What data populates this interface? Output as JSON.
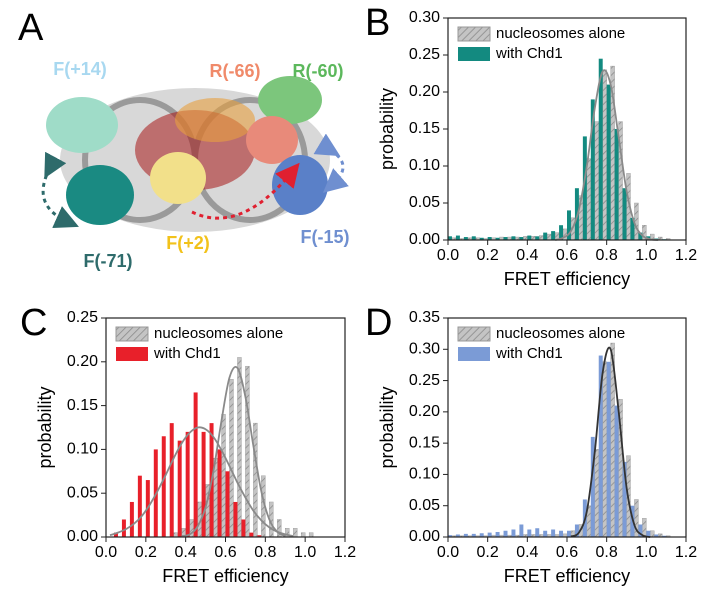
{
  "panel_a": {
    "letter": "A",
    "labels": [
      "F(+14)",
      "R(-66)",
      "R(-60)",
      "F(-71)",
      "F(+2)",
      "F(-15)"
    ]
  },
  "chart_data": [
    {
      "type": "histogram",
      "panel": "B",
      "xlabel": "FRET efficiency",
      "ylabel": "probability",
      "bins": [
        0,
        0.04,
        0.08,
        0.12,
        0.16,
        0.2,
        0.24,
        0.28,
        0.32,
        0.36,
        0.4,
        0.44,
        0.48,
        0.52,
        0.56,
        0.6,
        0.64,
        0.68,
        0.72,
        0.76,
        0.8,
        0.84,
        0.88,
        0.92,
        0.96,
        1,
        1.04,
        1.08,
        1.12,
        1.16,
        1.2
      ],
      "series": [
        {
          "name": "nucleosomes alone",
          "color": "#bdbdbd",
          "pattern": "hatched",
          "values": [
            0.003,
            0.002,
            0.003,
            0.003,
            0.002,
            0.003,
            0.004,
            0.004,
            0.004,
            0.005,
            0.005,
            0.006,
            0.008,
            0.01,
            0.015,
            0.03,
            0.06,
            0.11,
            0.16,
            0.23,
            0.235,
            0.16,
            0.09,
            0.05,
            0.02,
            0.008,
            0.004,
            0.002,
            0,
            0
          ]
        },
        {
          "name": "with Chd1",
          "color": "#138a80",
          "values": [
            0.005,
            0.006,
            0.004,
            0.005,
            0.003,
            0.004,
            0.003,
            0.004,
            0.005,
            0.004,
            0.006,
            0.005,
            0.01,
            0.012,
            0.02,
            0.04,
            0.07,
            0.14,
            0.19,
            0.245,
            0.21,
            0.15,
            0.07,
            0.03,
            0.01,
            0.005,
            0.002,
            0.001,
            0,
            0
          ]
        }
      ],
      "fits": [
        {
          "color": "#8a8a8a",
          "x": [
            0.54,
            0.58,
            0.62,
            0.66,
            0.7,
            0.74,
            0.78,
            0.82,
            0.86,
            0.9,
            0.94,
            0.98,
            1.02,
            1.06
          ],
          "values": [
            0,
            0.003,
            0.012,
            0.041,
            0.1,
            0.178,
            0.228,
            0.21,
            0.14,
            0.067,
            0.023,
            0.006,
            0.001,
            0
          ]
        }
      ],
      "xlim": [
        0,
        1.2
      ],
      "ylim": [
        0,
        0.3
      ],
      "xticks": [
        {
          "value": 0,
          "label": "0.0"
        },
        0.2,
        0.4,
        0.6,
        0.8,
        {
          "value": 1,
          "label": "1.0"
        },
        1.2
      ],
      "yticks": [
        {
          "value": 0,
          "label": "0.00"
        },
        0.05,
        {
          "value": 0.1,
          "label": "0.10"
        },
        0.15,
        {
          "value": 0.2,
          "label": "0.20"
        },
        0.25,
        {
          "value": 0.3,
          "label": "0.30"
        }
      ],
      "legend": "upper left"
    },
    {
      "type": "histogram",
      "panel": "C",
      "xlabel": "FRET efficiency",
      "ylabel": "probability",
      "bins": [
        0,
        0.04,
        0.08,
        0.12,
        0.16,
        0.2,
        0.24,
        0.28,
        0.32,
        0.36,
        0.4,
        0.44,
        0.48,
        0.52,
        0.56,
        0.6,
        0.64,
        0.68,
        0.72,
        0.76,
        0.8,
        0.84,
        0.88,
        0.92,
        0.96,
        1,
        1.04,
        1.08,
        1.12,
        1.16,
        1.2
      ],
      "series": [
        {
          "name": "nucleosomes alone",
          "color": "#bdbdbd",
          "pattern": "hatched",
          "values": [
            0,
            0,
            0,
            0,
            0,
            0,
            0,
            0,
            0.005,
            0.01,
            0.02,
            0.04,
            0.06,
            0.09,
            0.14,
            0.18,
            0.205,
            0.195,
            0.13,
            0.07,
            0.04,
            0.02,
            0.01,
            0.01,
            0.005,
            0.005,
            0,
            0,
            0,
            0
          ]
        },
        {
          "name": "with Chd1",
          "color": "#e8202a",
          "values": [
            0,
            0.005,
            0.02,
            0.04,
            0.07,
            0.065,
            0.1,
            0.115,
            0.13,
            0.11,
            0.12,
            0.165,
            0.12,
            0.13,
            0.1,
            0.075,
            0.04,
            0.02,
            0.005,
            0.002,
            0,
            0,
            0,
            0,
            0,
            0,
            0,
            0,
            0,
            0
          ]
        }
      ],
      "fits": [
        {
          "color": "#8a8a8a",
          "x": [
            0.38,
            0.42,
            0.46,
            0.5,
            0.54,
            0.58,
            0.62,
            0.66,
            0.7,
            0.74,
            0.78,
            0.82,
            0.86,
            0.9
          ],
          "values": [
            0.001,
            0.003,
            0.012,
            0.034,
            0.076,
            0.133,
            0.182,
            0.193,
            0.16,
            0.104,
            0.052,
            0.02,
            0.006,
            0.001
          ]
        },
        {
          "color": "#8a8a8a",
          "x": [
            0.02,
            0.06,
            0.1,
            0.14,
            0.18,
            0.22,
            0.26,
            0.3,
            0.34,
            0.38,
            0.42,
            0.46,
            0.5,
            0.54,
            0.58,
            0.62,
            0.66,
            0.7,
            0.74,
            0.78,
            0.82,
            0.86,
            0.9,
            0.94
          ],
          "values": [
            0.002,
            0.005,
            0.009,
            0.015,
            0.024,
            0.037,
            0.053,
            0.071,
            0.09,
            0.107,
            0.119,
            0.125,
            0.123,
            0.114,
            0.099,
            0.081,
            0.062,
            0.045,
            0.03,
            0.019,
            0.011,
            0.006,
            0.003,
            0.001
          ]
        }
      ],
      "xlim": [
        0,
        1.2
      ],
      "ylim": [
        0,
        0.25
      ],
      "xticks": [
        {
          "value": 0,
          "label": "0.0"
        },
        0.2,
        0.4,
        0.6,
        0.8,
        {
          "value": 1,
          "label": "1.0"
        },
        1.2
      ],
      "yticks": [
        {
          "value": 0,
          "label": "0.00"
        },
        0.05,
        {
          "value": 0.1,
          "label": "0.10"
        },
        0.15,
        {
          "value": 0.2,
          "label": "0.20"
        },
        0.25
      ],
      "legend": "upper left"
    },
    {
      "type": "histogram",
      "panel": "D",
      "xlabel": "FRET efficiency",
      "ylabel": "probability",
      "bins": [
        0,
        0.04,
        0.08,
        0.12,
        0.16,
        0.2,
        0.24,
        0.28,
        0.32,
        0.36,
        0.4,
        0.44,
        0.48,
        0.52,
        0.56,
        0.6,
        0.64,
        0.68,
        0.72,
        0.76,
        0.8,
        0.84,
        0.88,
        0.92,
        0.96,
        1,
        1.04,
        1.08,
        1.12,
        1.16,
        1.2
      ],
      "series": [
        {
          "name": "nucleosomes alone",
          "color": "#bdbdbd",
          "pattern": "hatched",
          "values": [
            0.002,
            0.002,
            0.002,
            0.002,
            0.002,
            0.003,
            0.003,
            0.003,
            0.003,
            0.004,
            0.004,
            0.004,
            0.004,
            0.004,
            0.005,
            0.01,
            0.02,
            0.05,
            0.14,
            0.28,
            0.31,
            0.22,
            0.13,
            0.06,
            0.03,
            0.01,
            0.005,
            0.002,
            0,
            0
          ]
        },
        {
          "name": "with Chd1",
          "color": "#7b9bd6",
          "values": [
            0.003,
            0.004,
            0.005,
            0.005,
            0.006,
            0.007,
            0.008,
            0.01,
            0.012,
            0.02,
            0.012,
            0.014,
            0.01,
            0.012,
            0.01,
            0.01,
            0.02,
            0.06,
            0.16,
            0.29,
            0.28,
            0.21,
            0.12,
            0.05,
            0.02,
            0.01,
            0.004,
            0.002,
            0,
            0
          ]
        }
      ],
      "fits": [
        {
          "color": "#333333",
          "x": [
            0.62,
            0.66,
            0.7,
            0.74,
            0.78,
            0.82,
            0.86,
            0.9,
            0.94,
            0.98,
            1.02
          ],
          "values": [
            0.001,
            0.007,
            0.041,
            0.136,
            0.263,
            0.3,
            0.202,
            0.08,
            0.019,
            0.003,
            0
          ]
        }
      ],
      "xlim": [
        0,
        1.2
      ],
      "ylim": [
        0,
        0.35
      ],
      "xticks": [
        {
          "value": 0,
          "label": "0.0"
        },
        0.2,
        0.4,
        0.6,
        0.8,
        {
          "value": 1,
          "label": "1.0"
        },
        1.2
      ],
      "yticks": [
        {
          "value": 0,
          "label": "0.00"
        },
        0.05,
        {
          "value": 0.1,
          "label": "0.10"
        },
        0.15,
        {
          "value": 0.2,
          "label": "0.20"
        },
        0.25,
        {
          "value": 0.3,
          "label": "0.30"
        },
        0.35
      ],
      "legend": "upper left"
    }
  ]
}
